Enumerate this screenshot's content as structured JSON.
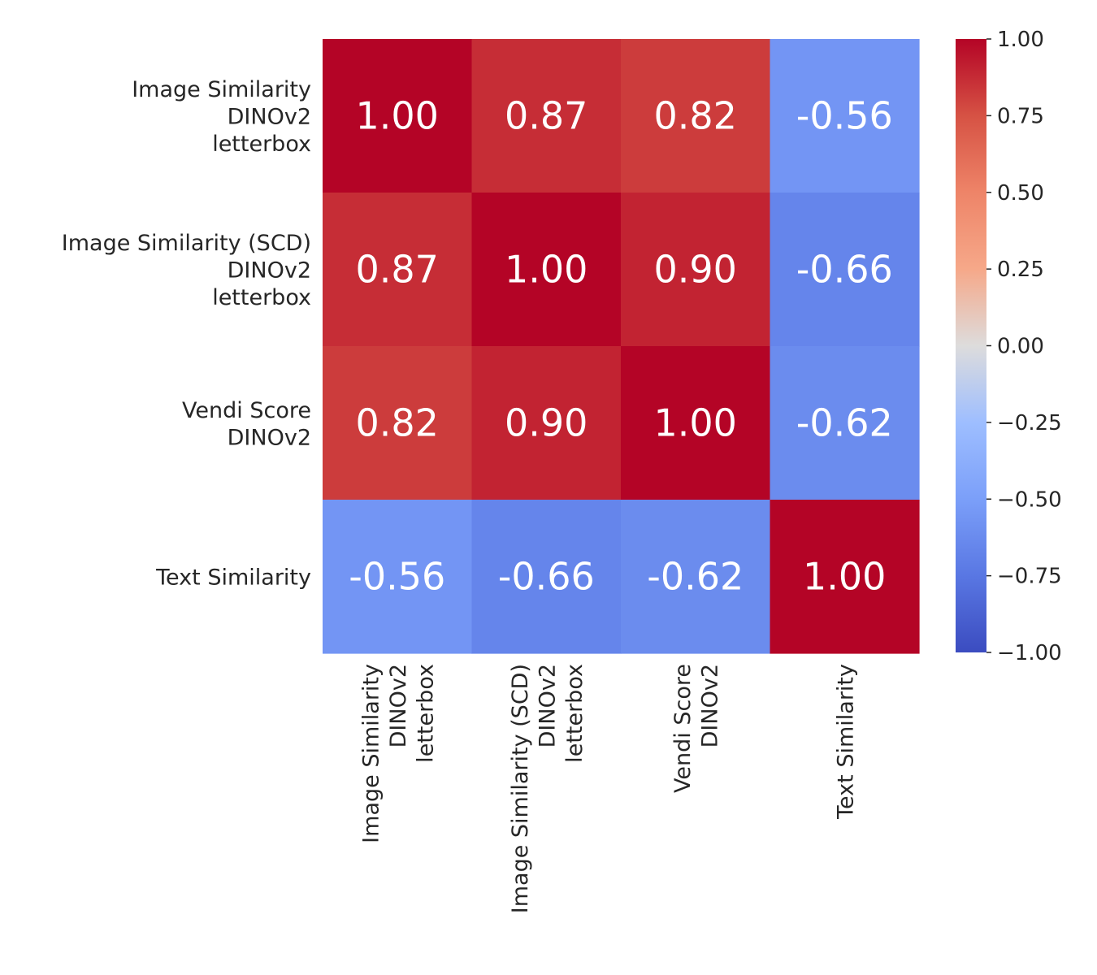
{
  "chart_data": {
    "type": "heatmap",
    "title": "",
    "row_labels": [
      [
        "Image Similarity",
        "DINOv2",
        "letterbox"
      ],
      [
        "Image Similarity (SCD)",
        "DINOv2",
        "letterbox"
      ],
      [
        "Vendi Score",
        "DINOv2"
      ],
      [
        "Text Similarity"
      ]
    ],
    "col_labels": [
      [
        "Image Similarity",
        "DINOv2",
        "letterbox"
      ],
      [
        "Image Similarity (SCD)",
        "DINOv2",
        "letterbox"
      ],
      [
        "Vendi Score",
        "DINOv2"
      ],
      [
        "Text Similarity"
      ]
    ],
    "values": [
      [
        1.0,
        0.87,
        0.82,
        -0.56
      ],
      [
        0.87,
        1.0,
        0.9,
        -0.66
      ],
      [
        0.82,
        0.9,
        1.0,
        -0.62
      ],
      [
        -0.56,
        -0.66,
        -0.62,
        1.0
      ]
    ],
    "cell_labels": [
      [
        "1.00",
        "0.87",
        "0.82",
        "-0.56"
      ],
      [
        "0.87",
        "1.00",
        "0.90",
        "-0.66"
      ],
      [
        "0.82",
        "0.90",
        "1.00",
        "-0.62"
      ],
      [
        "-0.56",
        "-0.66",
        "-0.62",
        "1.00"
      ]
    ],
    "colormap": "coolwarm",
    "vmin": -1.0,
    "vmax": 1.0,
    "colorbar": {
      "ticks": [
        1.0,
        0.75,
        0.5,
        0.25,
        0.0,
        -0.25,
        -0.5,
        -0.75,
        -1.0
      ],
      "tick_labels": [
        "1.00",
        "0.75",
        "0.50",
        "0.25",
        "0.00",
        "−0.25",
        "−0.50",
        "−0.75",
        "−1.00"
      ]
    }
  }
}
